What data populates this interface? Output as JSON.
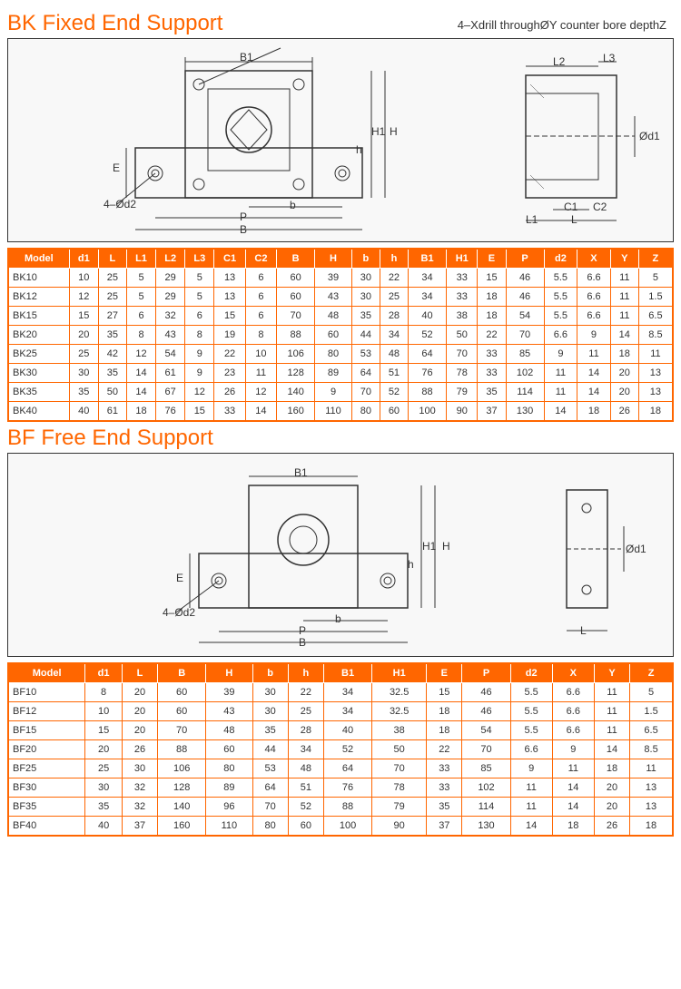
{
  "bk": {
    "title": "BK Fixed End Support",
    "callout": "4–Xdrill throughØY counter bore depthZ",
    "columns": [
      "Model",
      "d1",
      "L",
      "L1",
      "L2",
      "L3",
      "C1",
      "C2",
      "B",
      "H",
      "b",
      "h",
      "B1",
      "H1",
      "E",
      "P",
      "d2",
      "X",
      "Y",
      "Z"
    ],
    "rows": [
      [
        "BK10",
        "10",
        "25",
        "5",
        "29",
        "5",
        "13",
        "6",
        "60",
        "39",
        "30",
        "22",
        "34",
        "33",
        "15",
        "46",
        "5.5",
        "6.6",
        "11",
        "5"
      ],
      [
        "BK12",
        "12",
        "25",
        "5",
        "29",
        "5",
        "13",
        "6",
        "60",
        "43",
        "30",
        "25",
        "34",
        "33",
        "18",
        "46",
        "5.5",
        "6.6",
        "11",
        "1.5"
      ],
      [
        "BK15",
        "15",
        "27",
        "6",
        "32",
        "6",
        "15",
        "6",
        "70",
        "48",
        "35",
        "28",
        "40",
        "38",
        "18",
        "54",
        "5.5",
        "6.6",
        "11",
        "6.5"
      ],
      [
        "BK20",
        "20",
        "35",
        "8",
        "43",
        "8",
        "19",
        "8",
        "88",
        "60",
        "44",
        "34",
        "52",
        "50",
        "22",
        "70",
        "6.6",
        "9",
        "14",
        "8.5"
      ],
      [
        "BK25",
        "25",
        "42",
        "12",
        "54",
        "9",
        "22",
        "10",
        "106",
        "80",
        "53",
        "48",
        "64",
        "70",
        "33",
        "85",
        "9",
        "11",
        "18",
        "11"
      ],
      [
        "BK30",
        "30",
        "35",
        "14",
        "61",
        "9",
        "23",
        "11",
        "128",
        "89",
        "64",
        "51",
        "76",
        "78",
        "33",
        "102",
        "11",
        "14",
        "20",
        "13"
      ],
      [
        "BK35",
        "35",
        "50",
        "14",
        "67",
        "12",
        "26",
        "12",
        "140",
        "9",
        "70",
        "52",
        "88",
        "79",
        "35",
        "114",
        "11",
        "14",
        "20",
        "13"
      ],
      [
        "BK40",
        "40",
        "61",
        "18",
        "76",
        "15",
        "33",
        "14",
        "160",
        "110",
        "80",
        "60",
        "100",
        "90",
        "37",
        "130",
        "14",
        "18",
        "26",
        "18"
      ]
    ],
    "diagram_labels": [
      "B1",
      "H",
      "H1",
      "h",
      "b",
      "P",
      "B",
      "E",
      "L2",
      "L3",
      "L",
      "L1",
      "C1",
      "C2",
      "Ød1",
      "4–Ød2"
    ]
  },
  "bf": {
    "title": "BF Free End Support",
    "columns": [
      "Model",
      "d1",
      "L",
      "B",
      "H",
      "b",
      "h",
      "B1",
      "H1",
      "E",
      "P",
      "d2",
      "X",
      "Y",
      "Z"
    ],
    "rows": [
      [
        "BF10",
        "8",
        "20",
        "60",
        "39",
        "30",
        "22",
        "34",
        "32.5",
        "15",
        "46",
        "5.5",
        "6.6",
        "11",
        "5"
      ],
      [
        "BF12",
        "10",
        "20",
        "60",
        "43",
        "30",
        "25",
        "34",
        "32.5",
        "18",
        "46",
        "5.5",
        "6.6",
        "11",
        "1.5"
      ],
      [
        "BF15",
        "15",
        "20",
        "70",
        "48",
        "35",
        "28",
        "40",
        "38",
        "18",
        "54",
        "5.5",
        "6.6",
        "11",
        "6.5"
      ],
      [
        "BF20",
        "20",
        "26",
        "88",
        "60",
        "44",
        "34",
        "52",
        "50",
        "22",
        "70",
        "6.6",
        "9",
        "14",
        "8.5"
      ],
      [
        "BF25",
        "25",
        "30",
        "106",
        "80",
        "53",
        "48",
        "64",
        "70",
        "33",
        "85",
        "9",
        "11",
        "18",
        "11"
      ],
      [
        "BF30",
        "30",
        "32",
        "128",
        "89",
        "64",
        "51",
        "76",
        "78",
        "33",
        "102",
        "11",
        "14",
        "20",
        "13"
      ],
      [
        "BF35",
        "35",
        "32",
        "140",
        "96",
        "70",
        "52",
        "88",
        "79",
        "35",
        "114",
        "11",
        "14",
        "20",
        "13"
      ],
      [
        "BF40",
        "40",
        "37",
        "160",
        "110",
        "80",
        "60",
        "100",
        "90",
        "37",
        "130",
        "14",
        "18",
        "26",
        "18"
      ]
    ],
    "diagram_labels": [
      "B1",
      "H",
      "H1",
      "h",
      "b",
      "P",
      "B",
      "E",
      "L",
      "Ød1",
      "4–Ød2"
    ]
  },
  "style": {
    "accent_color": "#ff6600",
    "border_color": "#ff6600",
    "text_color": "#333333",
    "background": "#ffffff",
    "table_font_size": 11,
    "title_font_size": 24
  }
}
